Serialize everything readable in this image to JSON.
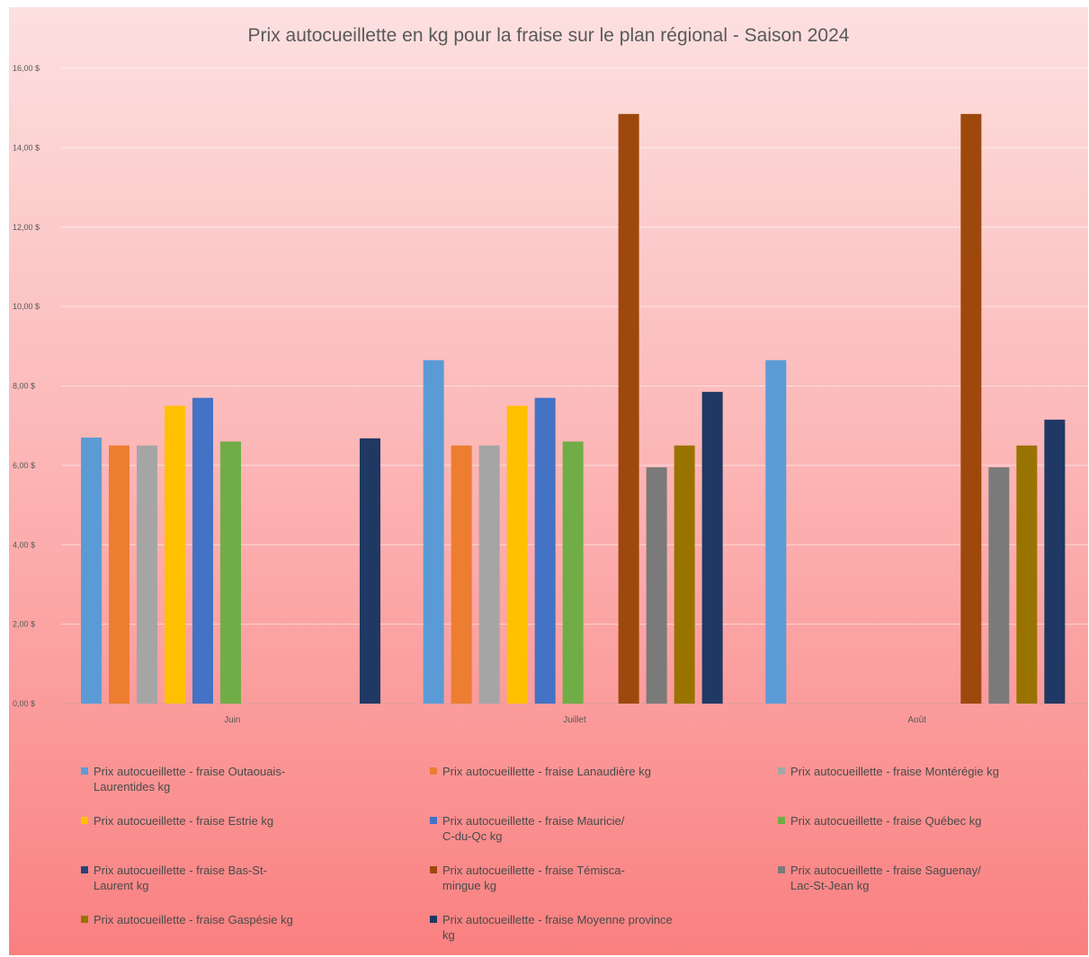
{
  "chart_data": {
    "type": "bar",
    "title": "Prix autocueillette en kg pour la fraise sur le plan régional  - Saison 2024",
    "categories": [
      "Juin",
      "Juillet",
      "Août"
    ],
    "ylim": [
      0,
      16
    ],
    "yticks": [
      "0,00 $",
      "2,00 $",
      "4,00 $",
      "6,00 $",
      "8,00 $",
      "10,00 $",
      "12,00 $",
      "14,00 $",
      "16,00 $"
    ],
    "grid": true,
    "legend_position": "bottom",
    "series": [
      {
        "name": "Prix autocueillette - fraise Outaouais-Laurentides kg",
        "color": "#5B9BD5",
        "values": [
          6.7,
          8.65,
          8.65
        ]
      },
      {
        "name": "Prix autocueillette - fraise Lanaudière kg",
        "color": "#ED7D31",
        "values": [
          6.5,
          6.5,
          null
        ]
      },
      {
        "name": "Prix autocueillette - fraise Montérégie kg",
        "color": "#A5A5A5",
        "values": [
          6.5,
          6.5,
          null
        ]
      },
      {
        "name": "Prix autocueillette - fraise Estrie kg",
        "color": "#FFC000",
        "values": [
          7.5,
          7.5,
          null
        ]
      },
      {
        "name": "Prix autocueillette - fraise Mauricie/C-du-Qc kg",
        "color": "#4472C4",
        "values": [
          7.7,
          7.7,
          null
        ]
      },
      {
        "name": "Prix autocueillette - fraise Québec kg",
        "color": "#70AD47",
        "values": [
          6.6,
          6.6,
          null
        ]
      },
      {
        "name": "Prix autocueillette - fraise Bas-St-Laurent kg",
        "color": "#264478",
        "values": [
          null,
          null,
          null
        ]
      },
      {
        "name": "Prix autocueillette - fraise Témiscamingue kg",
        "color": "#9E480E",
        "values": [
          null,
          14.85,
          14.85
        ]
      },
      {
        "name": "Prix autocueillette - fraise Saguenay/Lac-St-Jean kg",
        "color": "#7A7A7A",
        "values": [
          null,
          5.95,
          5.95
        ]
      },
      {
        "name": "Prix autocueillette - fraise Gaspésie kg",
        "color": "#997300",
        "values": [
          null,
          6.5,
          6.5
        ]
      },
      {
        "name": "Prix autocueillette - fraise Moyenne province kg",
        "color": "#203864",
        "values": [
          6.68,
          7.85,
          7.15
        ]
      }
    ]
  },
  "legend_lines": [
    [
      "Prix autocueillette - fraise Outaouais-",
      "Laurentides kg"
    ],
    [
      "Prix autocueillette - fraise Lanaudière kg"
    ],
    [
      "Prix autocueillette - fraise Montérégie kg"
    ],
    [
      "Prix autocueillette - fraise Estrie kg"
    ],
    [
      "Prix autocueillette - fraise Mauricie/",
      "C-du-Qc kg"
    ],
    [
      "Prix autocueillette - fraise Québec kg"
    ],
    [
      "Prix autocueillette - fraise Bas-St-",
      "Laurent kg"
    ],
    [
      "Prix autocueillette - fraise Témisca-",
      "mingue kg"
    ],
    [
      "Prix autocueillette - fraise Saguenay/",
      "Lac-St-Jean kg"
    ],
    [
      "Prix autocueillette - fraise Gaspésie kg"
    ],
    [
      "Prix autocueillette - fraise Moyenne province kg"
    ]
  ]
}
